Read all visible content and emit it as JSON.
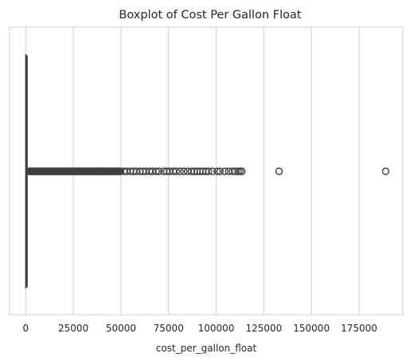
{
  "chart_data": {
    "type": "boxplot",
    "orientation": "horizontal",
    "title": "Boxplot of Cost Per Gallon Float",
    "xlabel": "cost_per_gallon_float",
    "ylabel": "",
    "xlim": [
      -8500,
      198000
    ],
    "xticks": [
      0,
      25000,
      50000,
      75000,
      100000,
      125000,
      150000,
      175000
    ],
    "grid": "vertical",
    "box": {
      "whisker_low": 0,
      "q1": 150,
      "median": 400,
      "q3": 800,
      "whisker_high": 1800
    },
    "outliers": {
      "dense_band": [
        1800,
        50000
      ],
      "sparse": [
        51500,
        53000,
        55000,
        56500,
        58000,
        60000,
        61500,
        63000,
        65000,
        66500,
        68500,
        70000,
        72500,
        74000,
        75500,
        77500,
        79000,
        81000,
        83000,
        85000,
        87000,
        88500,
        90000,
        91500,
        93000,
        94500,
        96000,
        98000,
        100500,
        102000,
        104500,
        106500,
        108500,
        110000,
        111500,
        112500,
        113500,
        133000,
        189000
      ]
    },
    "colors": {
      "box_line": "#3f3f3f",
      "grid": "#cfcfcf",
      "outlier_edge": "#3f3f3f"
    }
  }
}
